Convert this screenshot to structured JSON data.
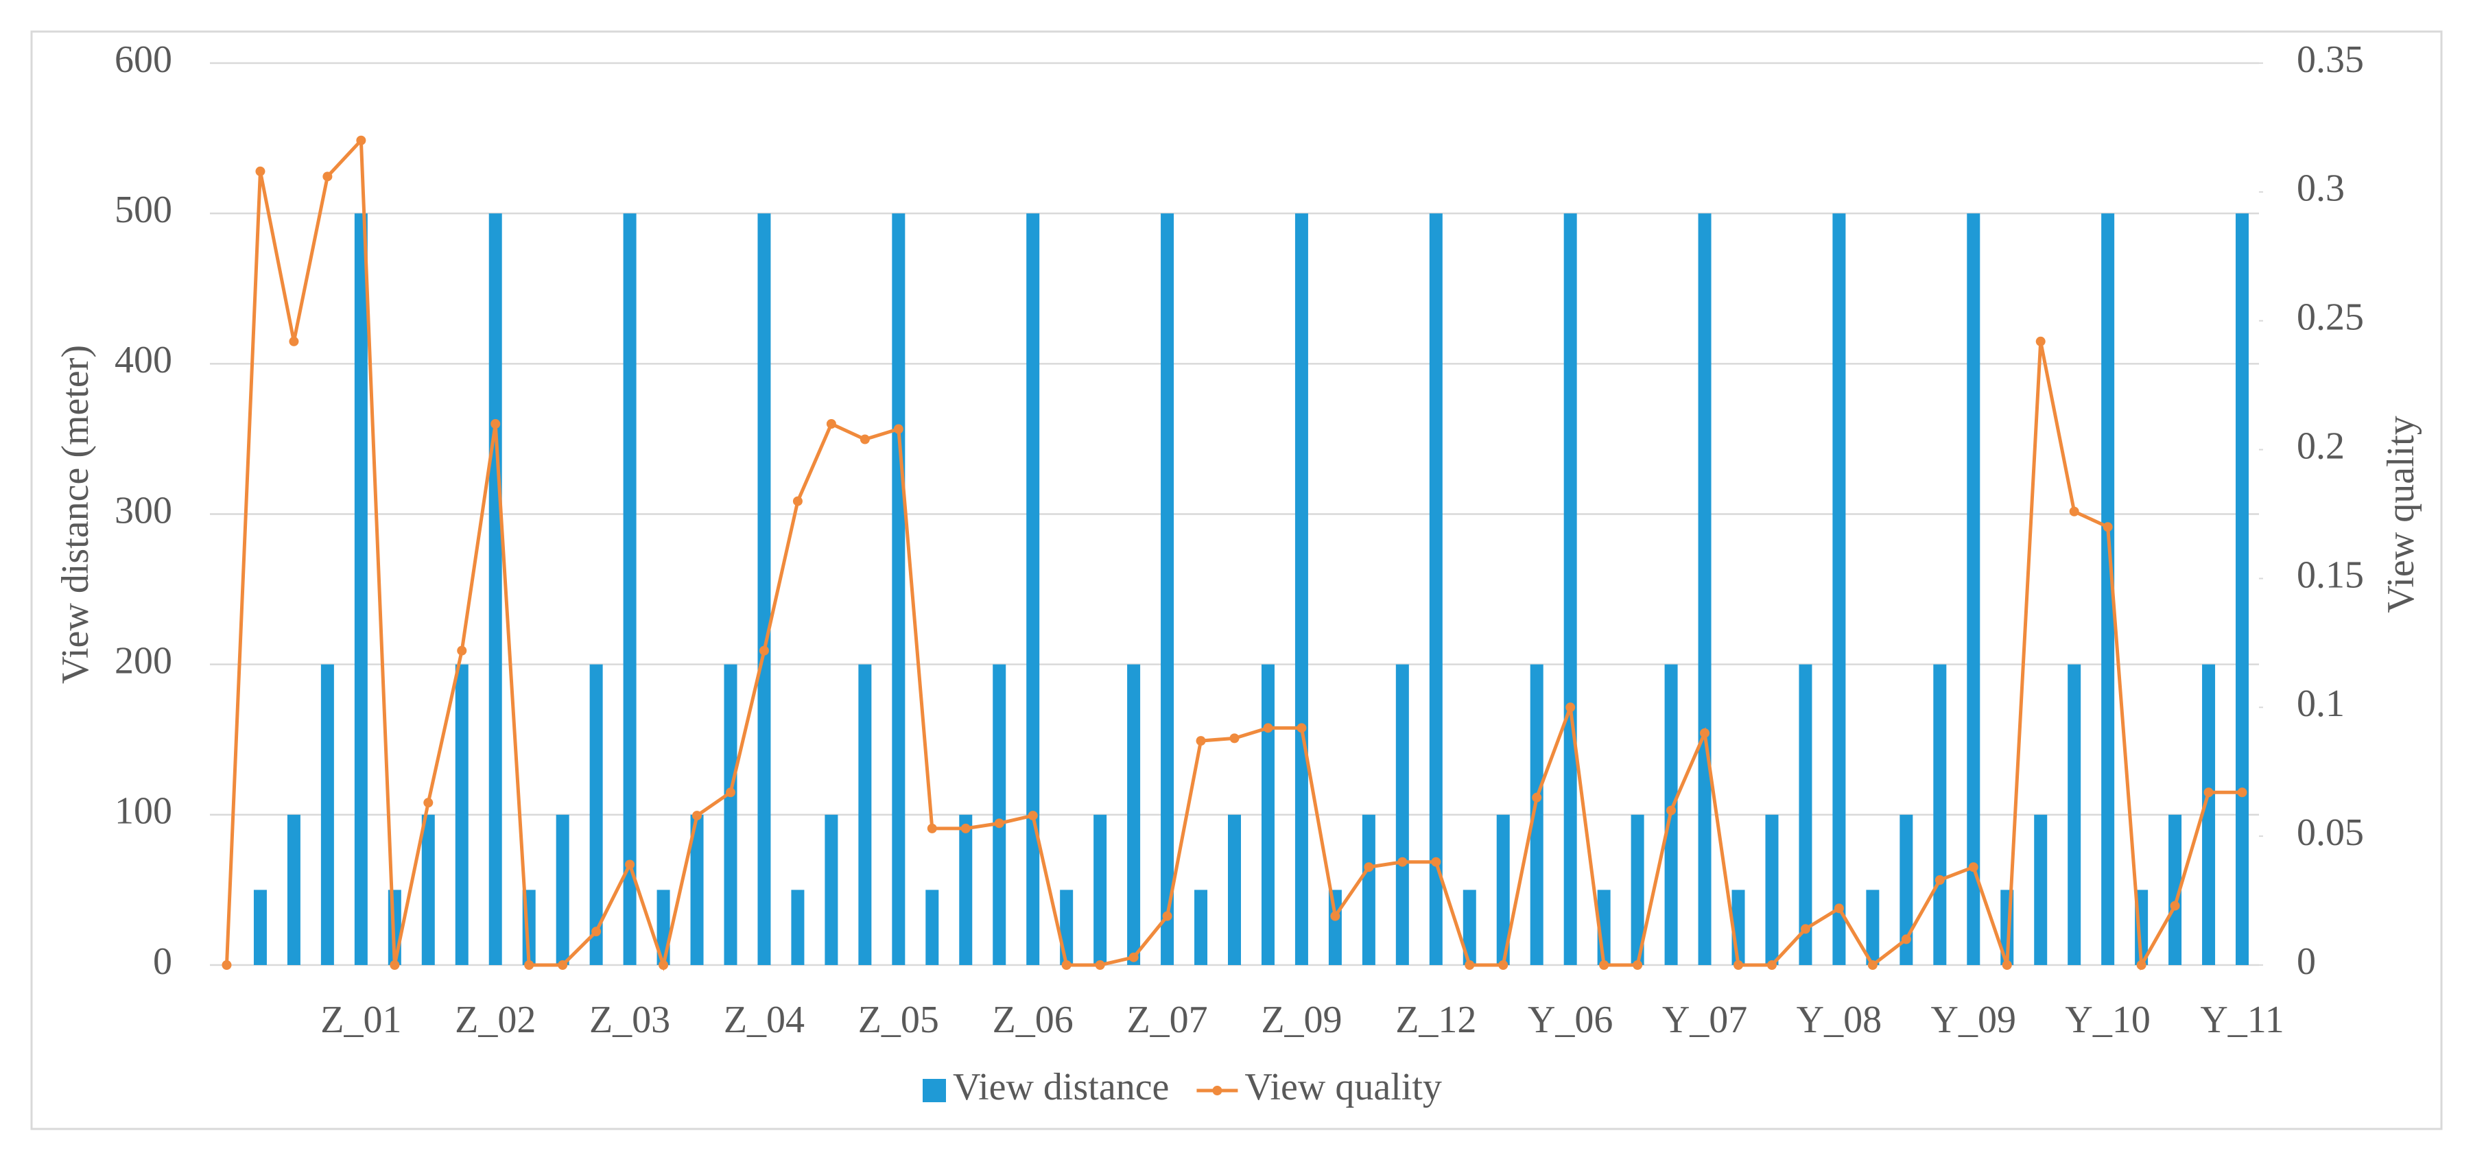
{
  "chart_data": {
    "type": "bar_line",
    "categories": [
      null,
      null,
      null,
      null,
      "Z_01",
      null,
      null,
      null,
      "Z_02",
      null,
      null,
      null,
      "Z_03",
      null,
      null,
      null,
      "Z_04",
      null,
      null,
      null,
      "Z_05",
      null,
      null,
      null,
      "Z_06",
      null,
      null,
      null,
      "Z_07",
      null,
      null,
      null,
      "Z_09",
      null,
      null,
      null,
      "Z_12",
      null,
      null,
      null,
      "Y_06",
      null,
      null,
      null,
      "Y_07",
      null,
      null,
      null,
      "Y_08",
      null,
      null,
      null,
      "Y_09",
      null,
      null,
      null,
      "Y_10",
      null,
      null,
      null,
      "Y_11"
    ],
    "series": [
      {
        "name": "View distance",
        "type": "bar",
        "color": "#1f9ad6",
        "values": [
          0,
          50,
          100,
          200,
          500,
          50,
          100,
          200,
          500,
          50,
          100,
          200,
          500,
          50,
          100,
          200,
          500,
          50,
          100,
          200,
          500,
          50,
          100,
          200,
          500,
          50,
          100,
          200,
          500,
          50,
          100,
          200,
          500,
          50,
          100,
          200,
          500,
          50,
          100,
          200,
          500,
          50,
          100,
          200,
          500,
          50,
          100,
          200,
          500,
          50,
          100,
          200,
          500,
          50,
          100,
          200,
          500,
          50,
          100,
          200,
          500
        ]
      },
      {
        "name": "View quality",
        "type": "line",
        "axis": "y2",
        "color": "#f08a3c",
        "values": [
          0,
          0.308,
          0.242,
          0.306,
          0.32,
          0,
          0.063,
          0.122,
          0.21,
          0,
          0,
          0.013,
          0.039,
          0,
          0.058,
          0.067,
          0.122,
          0.18,
          0.21,
          0.204,
          0.208,
          0.053,
          0.053,
          0.055,
          0.058,
          0,
          0,
          0.003,
          0.019,
          0.087,
          0.088,
          0.092,
          0.092,
          0.019,
          0.038,
          0.04,
          0.04,
          0,
          0,
          0.065,
          0.1,
          0,
          0,
          0.06,
          0.09,
          0,
          0,
          0.014,
          0.022,
          0,
          0.01,
          0.033,
          0.038,
          0,
          0.242,
          0.176,
          0.17,
          0,
          0.023,
          0.067,
          0.067
        ]
      }
    ],
    "y_label": "View distance (meter)",
    "y2_label": "View quality",
    "ylim": [
      0,
      600
    ],
    "yticks": [
      0,
      100,
      200,
      300,
      400,
      500,
      600
    ],
    "y2lim": [
      0,
      0.35
    ],
    "y2ticks": [
      0,
      0.05,
      0.1,
      0.15,
      0.2,
      0.25,
      0.3,
      0.35
    ],
    "grid": true,
    "legend": "bottom"
  }
}
